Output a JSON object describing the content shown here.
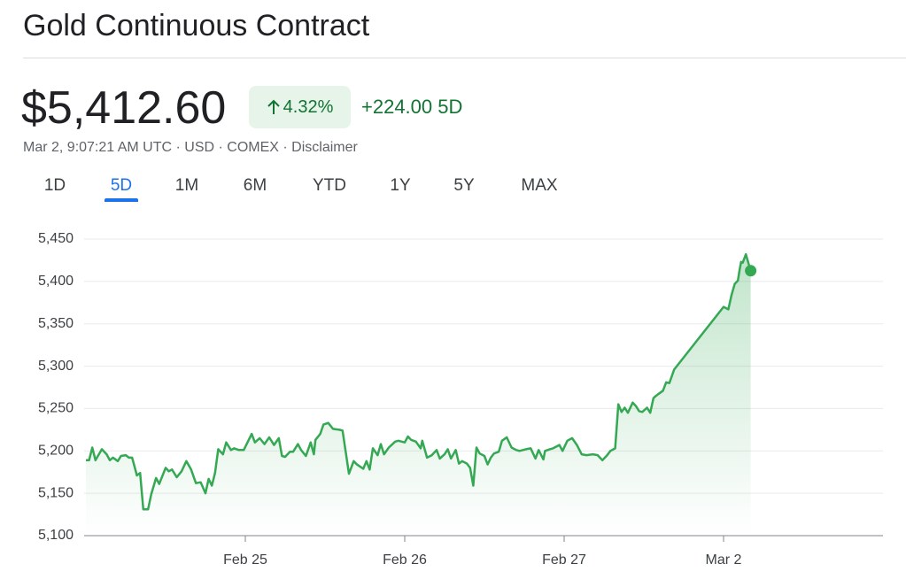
{
  "header": {
    "title": "Gold Continuous Contract",
    "price": "$5,412.60",
    "change_percent": "4.32%",
    "change": "+224.00",
    "period": "5D",
    "subline": "Mar 2, 9:07:21 AM UTC · USD · COMEX · Disclaimer"
  },
  "tabs": {
    "items": [
      "1D",
      "5D",
      "1M",
      "6M",
      "YTD",
      "1Y",
      "5Y",
      "MAX"
    ],
    "selected": 1
  },
  "chart_data": {
    "type": "line",
    "x": [
      0.0,
      0.02,
      0.04,
      0.06,
      0.1,
      0.13,
      0.15,
      0.17,
      0.2,
      0.22,
      0.25,
      0.27,
      0.29,
      0.32,
      0.34,
      0.36,
      0.39,
      0.41,
      0.44,
      0.46,
      0.5,
      0.52,
      0.54,
      0.57,
      0.6,
      0.63,
      0.66,
      0.69,
      0.72,
      0.75,
      0.77,
      0.79,
      0.81,
      0.83,
      0.86,
      0.88,
      0.91,
      0.93,
      0.96,
      0.99,
      1.04,
      1.06,
      1.09,
      1.12,
      1.15,
      1.18,
      1.21,
      1.23,
      1.25,
      1.28,
      1.3,
      1.33,
      1.35,
      1.38,
      1.41,
      1.43,
      1.44,
      1.47,
      1.49,
      1.52,
      1.55,
      1.59,
      1.61,
      1.65,
      1.68,
      1.7,
      1.74,
      1.76,
      1.78,
      1.8,
      1.83,
      1.85,
      1.87,
      1.9,
      1.94,
      1.96,
      2.0,
      2.02,
      2.04,
      2.07,
      2.1,
      2.11,
      2.14,
      2.17,
      2.2,
      2.22,
      2.25,
      2.27,
      2.29,
      2.32,
      2.34,
      2.36,
      2.39,
      2.41,
      2.43,
      2.45,
      2.47,
      2.5,
      2.52,
      2.54,
      2.56,
      2.59,
      2.61,
      2.64,
      2.67,
      2.7,
      2.72,
      2.76,
      2.79,
      2.82,
      2.84,
      2.87,
      2.88,
      2.91,
      2.93,
      2.97,
      2.99,
      3.02,
      3.05,
      3.08,
      3.11,
      3.14,
      3.18,
      3.21,
      3.24,
      3.27,
      3.29,
      3.32,
      3.34,
      3.36,
      3.38,
      3.4,
      3.43,
      3.45,
      3.47,
      3.49,
      3.52,
      3.54,
      3.56,
      3.57,
      3.59,
      3.62,
      3.64,
      3.66,
      3.69,
      4.0,
      4.03,
      4.05,
      4.07,
      4.09,
      4.1,
      4.11,
      4.12,
      4.14,
      4.16,
      4.17
    ],
    "values": [
      5189,
      5189,
      5204,
      5189,
      5202,
      5196,
      5189,
      5192,
      5188,
      5194,
      5195,
      5192,
      5192,
      5171,
      5174,
      5131,
      5131,
      5149,
      5168,
      5161,
      5180,
      5176,
      5178,
      5169,
      5176,
      5188,
      5178,
      5162,
      5163,
      5150,
      5167,
      5159,
      5174,
      5202,
      5196,
      5210,
      5201,
      5203,
      5201,
      5201,
      5220,
      5210,
      5215,
      5208,
      5216,
      5207,
      5215,
      5194,
      5193,
      5199,
      5199,
      5208,
      5201,
      5194,
      5210,
      5196,
      5213,
      5220,
      5231,
      5233,
      5226,
      5225,
      5224,
      5173,
      5188,
      5184,
      5179,
      5188,
      5178,
      5203,
      5195,
      5208,
      5196,
      5204,
      5211,
      5212,
      5210,
      5217,
      5213,
      5211,
      5203,
      5212,
      5192,
      5195,
      5201,
      5191,
      5196,
      5202,
      5191,
      5201,
      5185,
      5188,
      5185,
      5180,
      5159,
      5204,
      5197,
      5194,
      5184,
      5192,
      5197,
      5199,
      5212,
      5216,
      5204,
      5201,
      5200,
      5202,
      5203,
      5191,
      5201,
      5190,
      5200,
      5202,
      5203,
      5207,
      5200,
      5212,
      5215,
      5207,
      5196,
      5195,
      5196,
      5195,
      5189,
      5195,
      5200,
      5203,
      5255,
      5246,
      5251,
      5245,
      5257,
      5253,
      5247,
      5246,
      5251,
      5245,
      5262,
      5264,
      5267,
      5271,
      5281,
      5280,
      5296,
      5370,
      5367,
      5384,
      5397,
      5401,
      5413,
      5423,
      5422,
      5432,
      5419,
      5412.6
    ],
    "color": "#34a853",
    "xlim": [
      0,
      5
    ],
    "xticks": [
      {
        "value": 1,
        "label": "Feb 25"
      },
      {
        "value": 2,
        "label": "Feb 26"
      },
      {
        "value": 3,
        "label": "Feb 27"
      },
      {
        "value": 4,
        "label": "Mar 2"
      }
    ],
    "ylim": [
      5100,
      5450
    ],
    "yticks": [
      {
        "value": 5100,
        "label": "5,100"
      },
      {
        "value": 5150,
        "label": "5,150"
      },
      {
        "value": 5200,
        "label": "5,200"
      },
      {
        "value": 5250,
        "label": "5,250"
      },
      {
        "value": 5300,
        "label": "5,300"
      },
      {
        "value": 5350,
        "label": "5,350"
      },
      {
        "value": 5400,
        "label": "5,400"
      },
      {
        "value": 5450,
        "label": "5,450"
      }
    ],
    "grid": true
  }
}
